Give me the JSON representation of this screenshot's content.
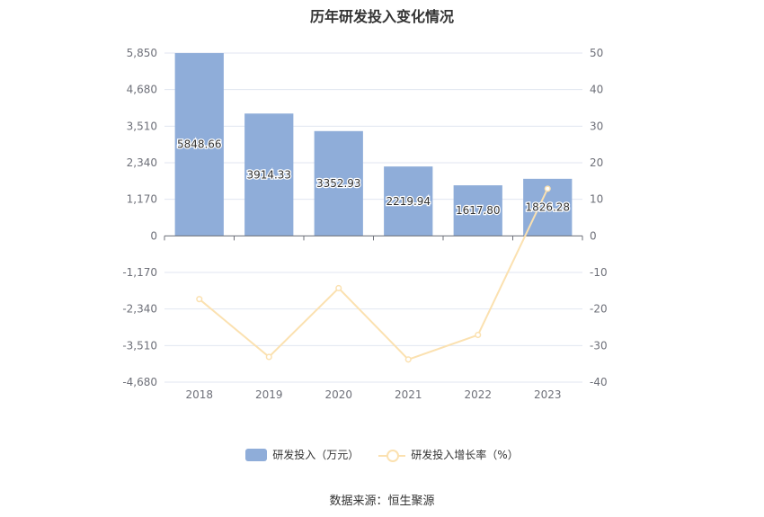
{
  "chart_data": {
    "type": "bar",
    "title": "历年研发投入变化情况",
    "categories": [
      "2018",
      "2019",
      "2020",
      "2021",
      "2022",
      "2023"
    ],
    "series": [
      {
        "name": "研发投入（万元）",
        "kind": "bar",
        "axis": "left",
        "color": "#8fadd9",
        "values": [
          5848.66,
          3914.33,
          3352.93,
          2219.94,
          1617.8,
          1826.28
        ],
        "labels": [
          "5848.66",
          "3914.33",
          "3352.93",
          "2219.94",
          "1617.80",
          "1826.28"
        ]
      },
      {
        "name": "研发投入增长率（%）",
        "kind": "line",
        "axis": "right",
        "color": "#fbe1b0",
        "values": [
          -17.3,
          -33.1,
          -14.3,
          -33.8,
          -27.1,
          12.9
        ]
      }
    ],
    "y_left": {
      "ylim": [
        -4680,
        5850
      ],
      "ticks": [
        5850,
        4680,
        3510,
        2340,
        1170,
        0,
        -1170,
        -2340,
        -3510,
        -4680
      ],
      "tick_labels": [
        "5,850",
        "4,680",
        "3,510",
        "2,340",
        "1,170",
        "0",
        "-1,170",
        "-2,340",
        "-3,510",
        "-4,680"
      ]
    },
    "y_right": {
      "ylim": [
        -40,
        50
      ],
      "ticks": [
        50,
        40,
        30,
        20,
        10,
        0,
        -10,
        -20,
        -30,
        -40
      ],
      "tick_labels": [
        "50",
        "40",
        "30",
        "20",
        "10",
        "0",
        "-10",
        "-20",
        "-30",
        "-40"
      ]
    },
    "grid": true,
    "legend_position": "bottom"
  },
  "source": "数据来源：恒生聚源"
}
